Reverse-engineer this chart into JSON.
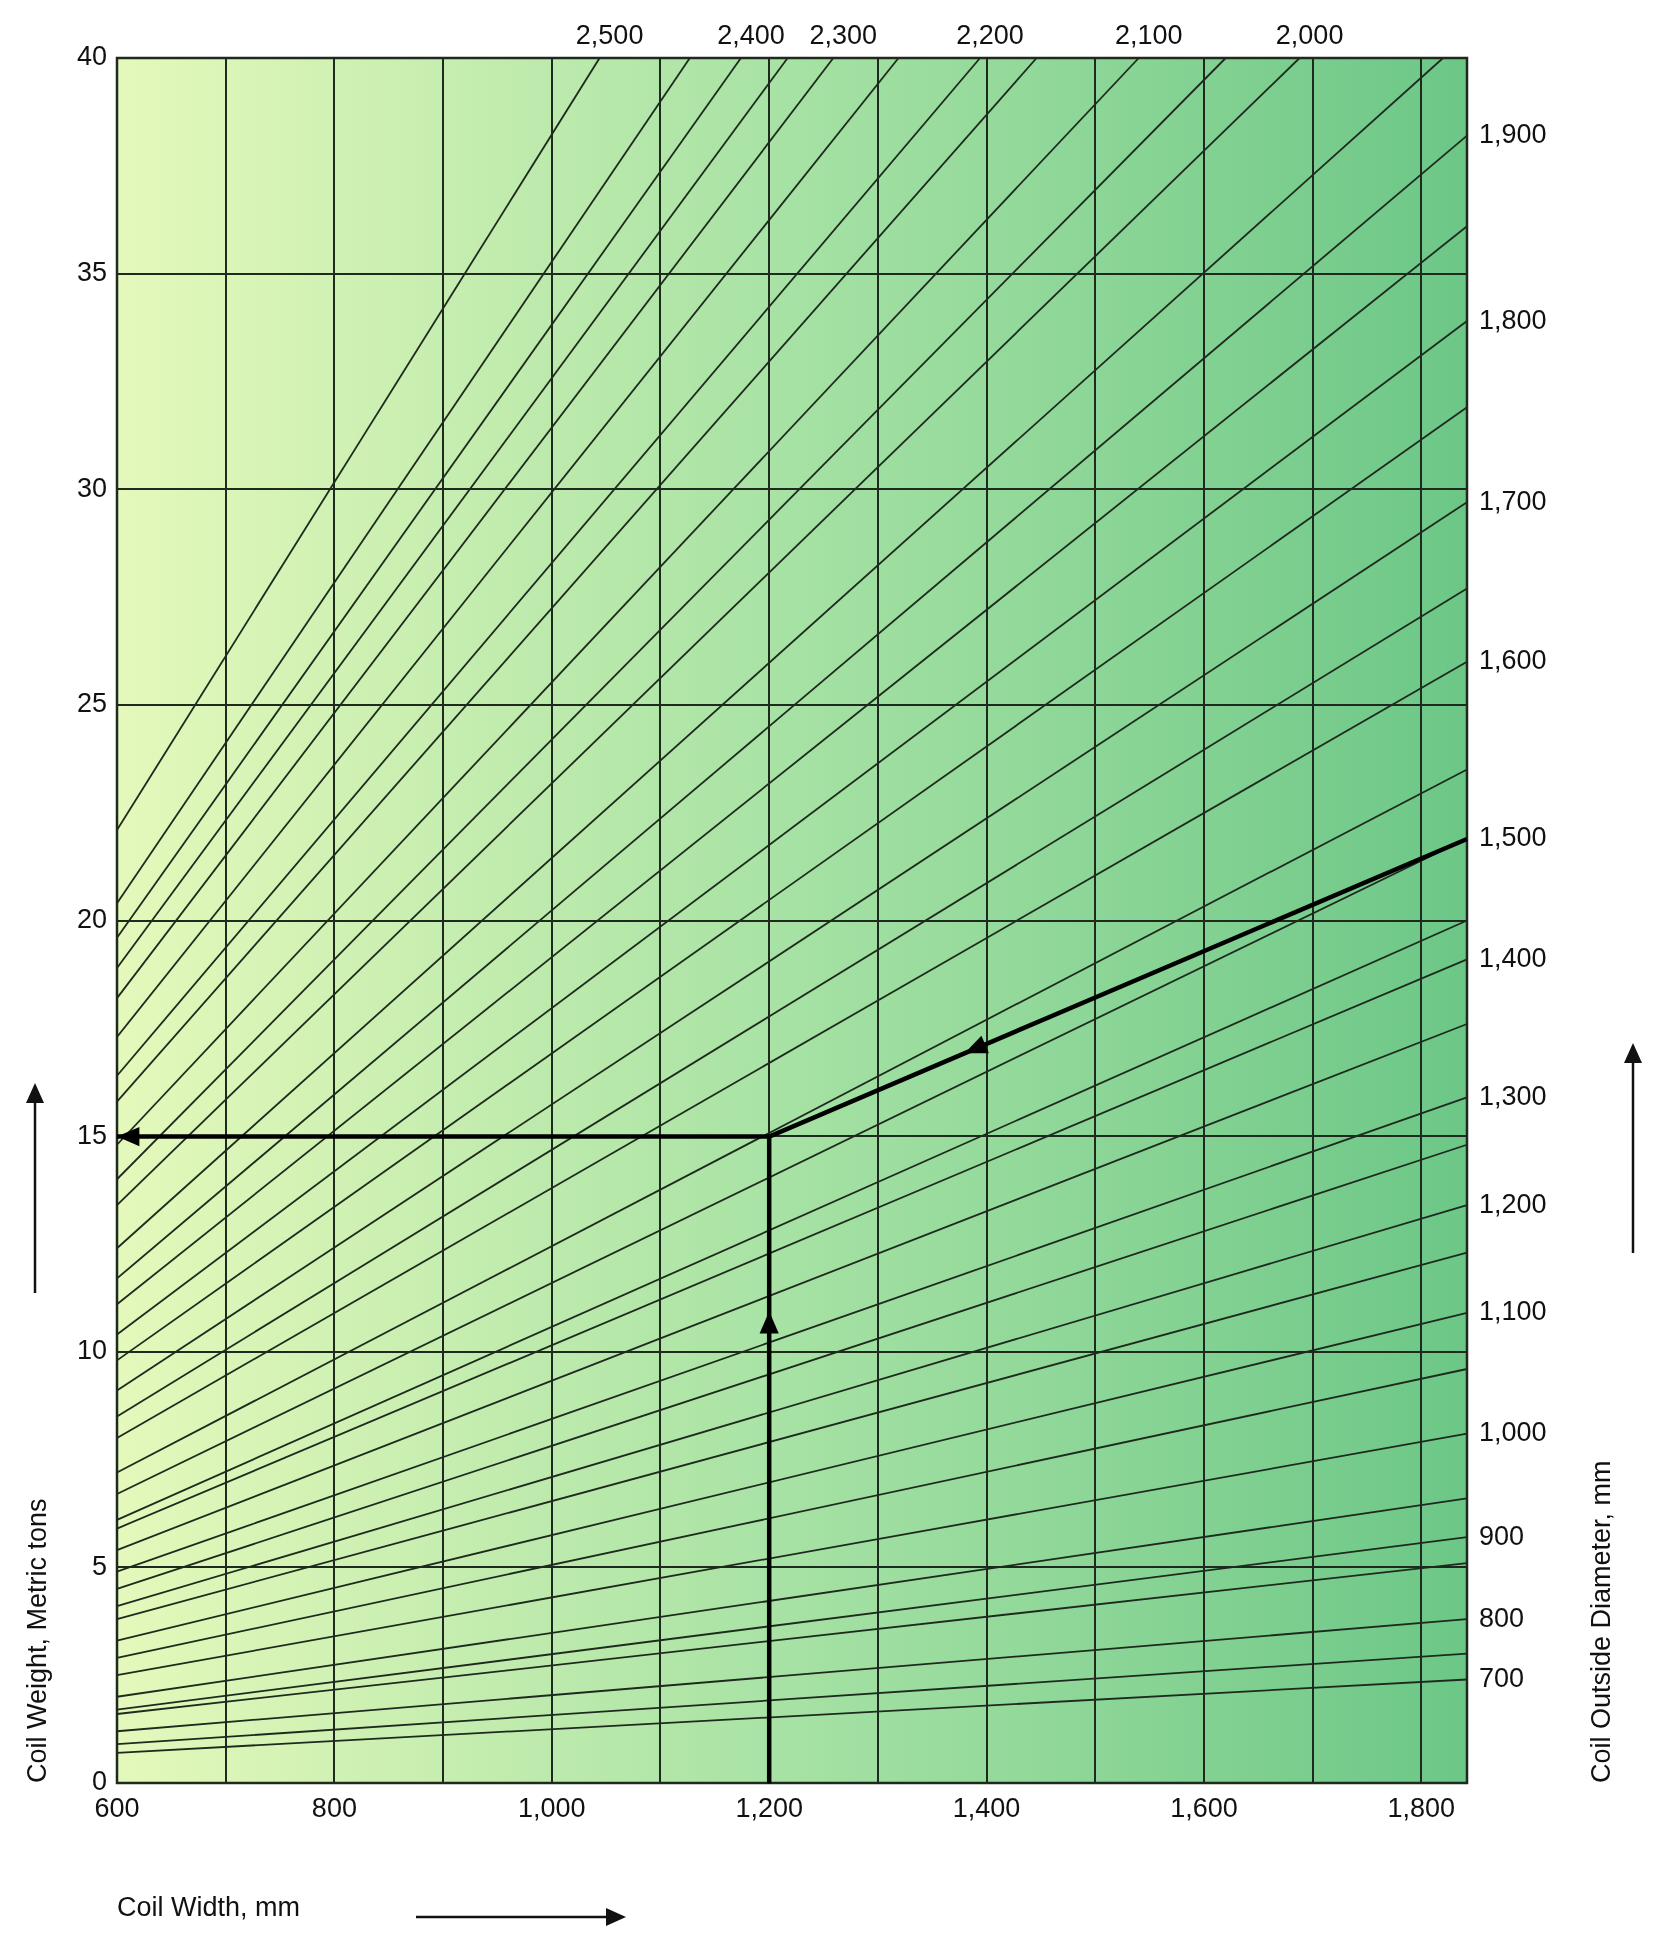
{
  "chart_data": {
    "type": "line",
    "xlabel": "Coil Width, mm",
    "ylabel": "Coil Weight, Metric tons",
    "xlim": [
      600,
      1842
    ],
    "xticks": [
      600,
      {
        "value": 700,
        "label": null
      },
      {
        "value": 800,
        "label": "800"
      },
      {
        "value": 900,
        "label": null
      },
      {
        "value": 1000,
        "label": "1,000"
      },
      {
        "value": 1100,
        "label": null
      },
      {
        "value": 1200,
        "label": "1,200"
      },
      {
        "value": 1300,
        "label": null
      },
      {
        "value": 1400,
        "label": "1,400"
      },
      {
        "value": 1500,
        "label": null
      },
      {
        "value": 1600,
        "label": "1,600"
      },
      {
        "value": 1700,
        "label": null
      },
      {
        "value": 1800,
        "label": "1,800"
      }
    ],
    "ylim": [
      0,
      40
    ],
    "yticks": [
      0,
      5,
      10,
      15,
      20,
      25,
      30,
      35,
      40
    ],
    "annotations": [
      "Coil Outside Diameter, mm",
      {
        "text": "2,500",
        "x": 1044,
        "y": 40
      },
      {
        "text": "2,400",
        "x": 1174,
        "y": 40
      },
      {
        "text": "2,300",
        "x": 1259,
        "y": 40
      },
      {
        "text": "2,200",
        "x": 1394,
        "y": 40
      },
      {
        "text": "2,100",
        "x": 1540,
        "y": 40
      },
      {
        "text": "2,000",
        "x": 1688,
        "y": 40
      },
      {
        "text": "1,900",
        "x": 1842,
        "y": 38.2
      },
      {
        "text": "1,800",
        "x": 1842,
        "y": 33.9
      },
      {
        "text": "1,700",
        "x": 1842,
        "y": 29.7
      },
      {
        "text": "1,600",
        "x": 1842,
        "y": 26
      },
      {
        "text": "1,500",
        "x": 1842,
        "y": 21.9
      },
      {
        "text": "1,400",
        "x": 1842,
        "y": 19.1
      },
      {
        "text": "1,300",
        "x": 1842,
        "y": 15.9
      },
      {
        "text": "1,200",
        "x": 1842,
        "y": 13.4
      },
      {
        "text": "1,100",
        "x": 1842,
        "y": 10.9
      },
      {
        "text": "1,000",
        "x": 1842,
        "y": 8.1
      },
      {
        "text": "900",
        "x": 1842,
        "y": 5.7
      },
      {
        "text": "800",
        "x": 1842,
        "y": 3.8
      },
      {
        "text": "700",
        "x": 1842,
        "y": 2.4
      }
    ],
    "grid": true,
    "series": [
      {
        "x": [
          600,
          1044
        ],
        "values": [
          22.1,
          40
        ]
      },
      {
        "x": [
          600,
          1127
        ],
        "values": [
          20.4,
          40
        ]
      },
      {
        "x": [
          600,
          1174
        ],
        "values": [
          19.6,
          40
        ]
      },
      {
        "x": [
          600,
          1217
        ],
        "values": [
          18.9,
          40
        ]
      },
      {
        "x": [
          600,
          1259
        ],
        "values": [
          18.2,
          40
        ]
      },
      {
        "x": [
          600,
          1319
        ],
        "values": [
          17.3,
          40
        ]
      },
      {
        "x": [
          600,
          1394
        ],
        "values": [
          16.4,
          40
        ]
      },
      {
        "x": [
          600,
          1446
        ],
        "values": [
          15.8,
          40
        ]
      },
      {
        "x": [
          600,
          1540
        ],
        "values": [
          14.8,
          40
        ]
      },
      {
        "x": [
          600,
          1620
        ],
        "values": [
          14,
          40
        ]
      },
      {
        "x": [
          600,
          1688
        ],
        "values": [
          13.4,
          40
        ]
      },
      {
        "x": [
          600,
          1820
        ],
        "values": [
          12.4,
          40
        ]
      },
      {
        "x": [
          600,
          1842
        ],
        "values": [
          11.7,
          38.2
        ]
      },
      {
        "x": [
          600,
          1842
        ],
        "values": [
          11.1,
          36.1
        ]
      },
      {
        "x": [
          600,
          1842
        ],
        "values": [
          10.4,
          33.9
        ]
      },
      {
        "x": [
          600,
          1842
        ],
        "values": [
          9.8,
          31.9
        ]
      },
      {
        "x": [
          600,
          1842
        ],
        "values": [
          9.1,
          29.7
        ]
      },
      {
        "x": [
          600,
          1842
        ],
        "values": [
          8.5,
          27.7
        ]
      },
      {
        "x": [
          600,
          1842
        ],
        "values": [
          8,
          26
        ]
      },
      {
        "x": [
          600,
          1842
        ],
        "values": [
          7.2,
          23.5
        ]
      },
      {
        "x": [
          600,
          1842
        ],
        "values": [
          6.7,
          21.9
        ]
      },
      {
        "x": [
          600,
          1842
        ],
        "values": [
          6.1,
          20
        ]
      },
      {
        "x": [
          600,
          1842
        ],
        "values": [
          5.9,
          19.1
        ]
      },
      {
        "x": [
          600,
          1842
        ],
        "values": [
          5.4,
          17.6
        ]
      },
      {
        "x": [
          600,
          1842
        ],
        "values": [
          4.9,
          15.9
        ]
      },
      {
        "x": [
          600,
          1842
        ],
        "values": [
          4.5,
          14.8
        ]
      },
      {
        "x": [
          600,
          1842
        ],
        "values": [
          4.1,
          13.4
        ]
      },
      {
        "x": [
          600,
          1842
        ],
        "values": [
          3.8,
          12.3
        ]
      },
      {
        "x": [
          600,
          1842
        ],
        "values": [
          3.3,
          10.9
        ]
      },
      {
        "x": [
          600,
          1842
        ],
        "values": [
          2.9,
          9.6
        ]
      },
      {
        "x": [
          600,
          1842
        ],
        "values": [
          2.5,
          8.1
        ]
      },
      {
        "x": [
          600,
          1842
        ],
        "values": [
          2,
          6.6
        ]
      },
      {
        "x": [
          600,
          1842
        ],
        "values": [
          1.7,
          5.7
        ]
      },
      {
        "x": [
          600,
          1842
        ],
        "values": [
          1.6,
          5.1
        ]
      },
      {
        "x": [
          600,
          1842
        ],
        "values": [
          1.2,
          3.8
        ]
      },
      {
        "x": [
          600,
          1842
        ],
        "values": [
          0.9,
          3
        ]
      },
      {
        "x": [
          600,
          1842
        ],
        "values": [
          0.7,
          2.4
        ]
      }
    ]
  }
}
